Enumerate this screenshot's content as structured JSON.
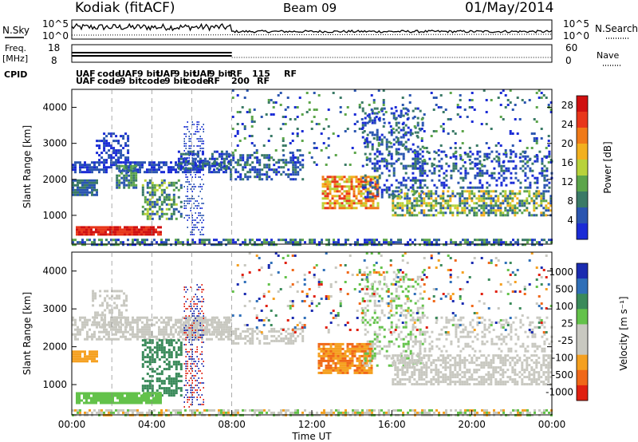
{
  "header": {
    "station": "Kodiak (fitACF)",
    "beam": "Beam 09",
    "date": "01/May/2014"
  },
  "top_labels": {
    "nsky": "N.Sky",
    "nsearch": "N.Search",
    "freq_line1": "Freq.",
    "freq_line2": "[MHz]",
    "nave": "Nave",
    "cpid": "CPID"
  },
  "top_ticks": {
    "noise_left_hi": "10^5",
    "noise_left_lo": "10^0",
    "noise_right_hi": "10^5",
    "noise_right_lo": "10^0",
    "freq_hi": "18",
    "freq_lo": "8",
    "nave_hi": "60",
    "nave_lo": "0"
  },
  "cpid_labels": [
    {
      "row": 1,
      "text": "UAF"
    },
    {
      "row": 1,
      "text": "code"
    },
    {
      "row": 1,
      "text": "UAF"
    },
    {
      "row": 1,
      "text": "9 bit"
    },
    {
      "row": 1,
      "text": "UAF"
    },
    {
      "row": 1,
      "text": "9 bit"
    },
    {
      "row": 1,
      "text": "UAF"
    },
    {
      "row": 1,
      "text": "9 bit"
    },
    {
      "row": 1,
      "text": "RF"
    },
    {
      "row": 1,
      "text": "115"
    },
    {
      "row": 1,
      "text": "RF"
    },
    {
      "row": 2,
      "text": "UAF"
    },
    {
      "row": 2,
      "text": "code"
    },
    {
      "row": 2,
      "text": "9 bit"
    },
    {
      "row": 2,
      "text": "code"
    },
    {
      "row": 2,
      "text": "9 bit"
    },
    {
      "row": 2,
      "text": "code"
    },
    {
      "row": 2,
      "text": "RF"
    },
    {
      "row": 2,
      "text": "200"
    },
    {
      "row": 2,
      "text": "RF"
    }
  ],
  "colors": {
    "scale_power": [
      "#1a2bd6",
      "#2a55b0",
      "#3a7a66",
      "#5ca54a",
      "#b8d23a",
      "#f2b01e",
      "#f07a18",
      "#e8361a",
      "#d01010"
    ],
    "scale_velocity": [
      "#1a2bb0",
      "#2f6fb8",
      "#3a8a5a",
      "#63c24a",
      "#c8c8c0",
      "#c8c8c0",
      "#f5a020",
      "#f06818",
      "#e02010"
    ]
  },
  "chart_data": [
    {
      "type": "heatmap",
      "name": "power",
      "ylabel": "Slant Range [km]",
      "x": [
        "00:00",
        "04:00",
        "08:00",
        "12:00",
        "16:00",
        "20:00",
        "00:00"
      ],
      "y_ticks": [
        1000,
        2000,
        3000,
        4000
      ],
      "ylim": [
        200,
        4500
      ],
      "colorbar": {
        "label": "Power [dB]",
        "ticks": [
          4,
          8,
          12,
          16,
          20,
          24,
          28
        ],
        "range": [
          0,
          30
        ]
      }
    },
    {
      "type": "heatmap",
      "name": "velocity",
      "ylabel": "Slant Range [km]",
      "xlabel": "Time UT",
      "x": [
        "00:00",
        "04:00",
        "08:00",
        "12:00",
        "16:00",
        "20:00",
        "00:00"
      ],
      "y_ticks": [
        1000,
        2000,
        3000,
        4000
      ],
      "ylim": [
        200,
        4500
      ],
      "colorbar": {
        "label": "Velocity [m s⁻¹]",
        "ticks": [
          1000,
          500,
          100,
          25,
          -25,
          -100,
          -500,
          -1000
        ]
      }
    }
  ]
}
